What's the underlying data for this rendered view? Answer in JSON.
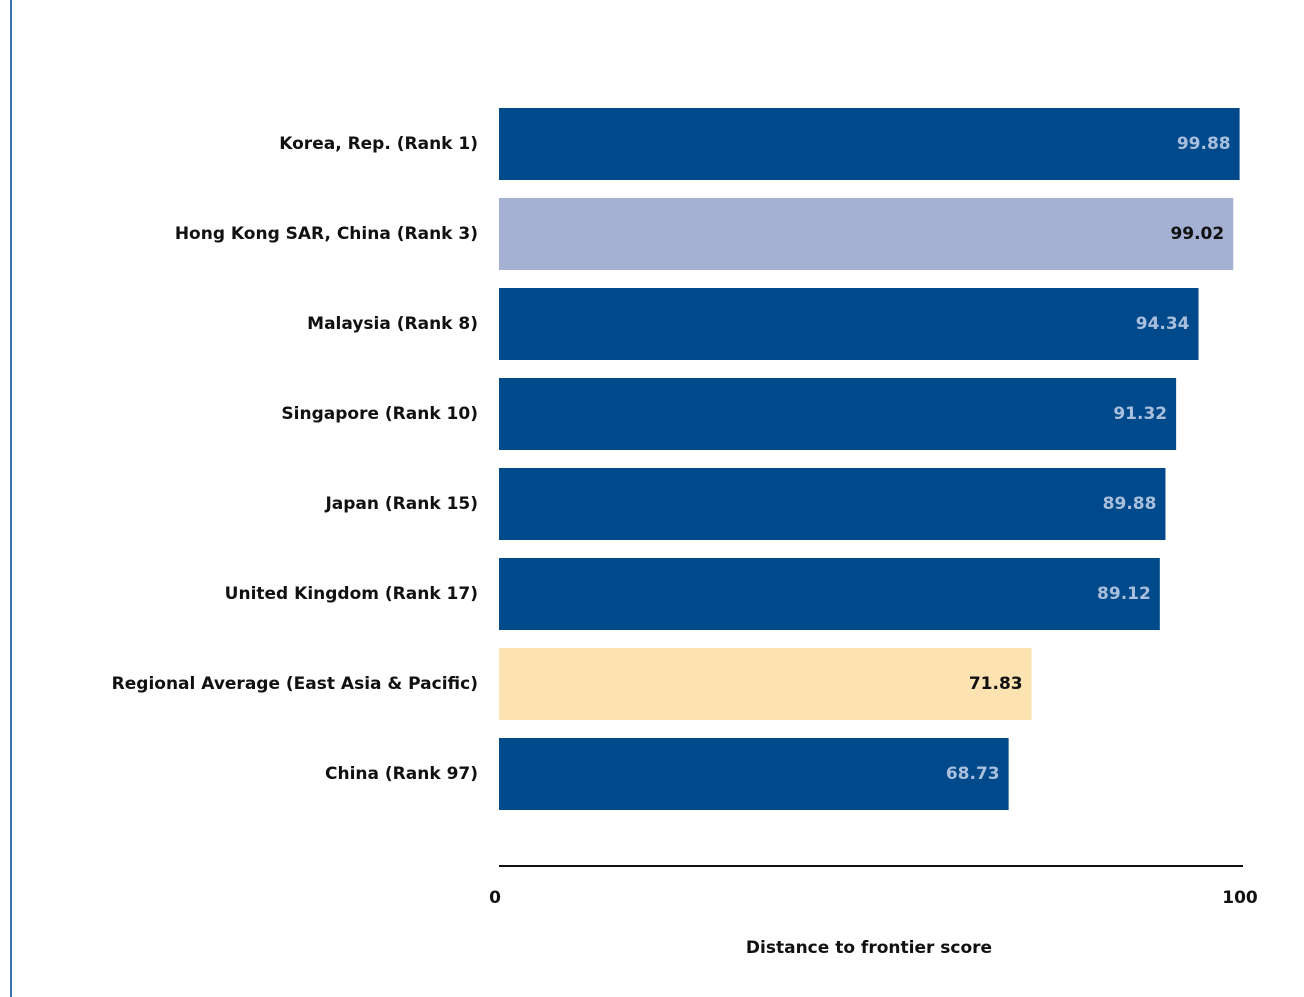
{
  "chart_data": {
    "type": "bar",
    "orientation": "horizontal",
    "title": "",
    "xlabel": "Distance to frontier score",
    "ylabel": "",
    "xlim": [
      0,
      100
    ],
    "ticks": [
      "0",
      "100"
    ],
    "grid": false,
    "categories": [
      "Korea, Rep. (Rank 1)",
      "Hong Kong SAR, China (Rank 3)",
      "Malaysia (Rank 8)",
      "Singapore (Rank 10)",
      "Japan (Rank 15)",
      "United Kingdom (Rank 17)",
      "Regional Average (East Asia & Pacific)",
      "China (Rank 97)"
    ],
    "values": [
      99.88,
      99.02,
      94.34,
      91.32,
      89.88,
      89.12,
      71.83,
      68.73
    ],
    "value_labels": [
      "99.88",
      "99.02",
      "94.34",
      "91.32",
      "89.88",
      "89.12",
      "71.83",
      "68.73"
    ],
    "bar_colors": [
      "#004a8c",
      "#a4b1d3",
      "#004a8c",
      "#004a8c",
      "#004a8c",
      "#004a8c",
      "#fde3b2",
      "#004a8c"
    ],
    "label_colors": [
      "#a9bfdc",
      "#111111",
      "#a9bfdc",
      "#a9bfdc",
      "#a9bfdc",
      "#a9bfdc",
      "#111111",
      "#a9bfdc"
    ]
  }
}
